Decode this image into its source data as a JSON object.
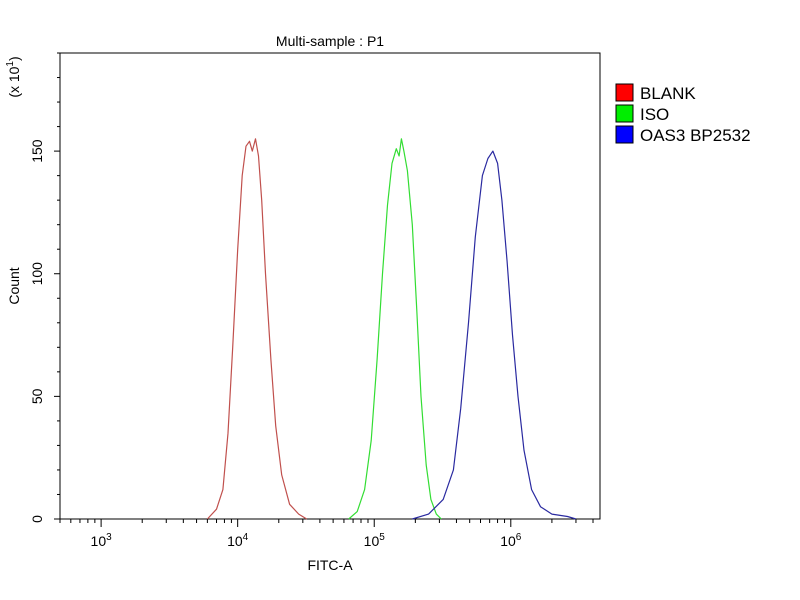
{
  "chart_data": {
    "type": "line",
    "title": "Multi-sample : P1",
    "xlabel": "FITC-A",
    "ylabel": "Count",
    "y_multiplier_label": "(x 10",
    "y_multiplier_exp": "1",
    "y_multiplier_close": ")",
    "x_scale": "log",
    "xlim": [
      500,
      4500000
    ],
    "ylim": [
      0,
      190
    ],
    "x_ticks": [
      {
        "value": 1000,
        "base": "10",
        "exp": "3"
      },
      {
        "value": 10000,
        "base": "10",
        "exp": "4"
      },
      {
        "value": 100000,
        "base": "10",
        "exp": "5"
      },
      {
        "value": 1000000,
        "base": "10",
        "exp": "6"
      }
    ],
    "y_ticks": [
      0,
      50,
      100,
      150
    ],
    "legend_position": "right",
    "series": [
      {
        "name": "BLANK",
        "color": "#c0504d",
        "legend_color": "#ff0000",
        "points": [
          [
            6000,
            0
          ],
          [
            7000,
            4
          ],
          [
            7800,
            12
          ],
          [
            8500,
            35
          ],
          [
            9200,
            70
          ],
          [
            10000,
            110
          ],
          [
            10800,
            140
          ],
          [
            11500,
            152
          ],
          [
            12200,
            154
          ],
          [
            12800,
            150
          ],
          [
            13500,
            155
          ],
          [
            14200,
            148
          ],
          [
            15000,
            130
          ],
          [
            16000,
            100
          ],
          [
            17500,
            65
          ],
          [
            19000,
            38
          ],
          [
            21000,
            18
          ],
          [
            24000,
            6
          ],
          [
            28000,
            2
          ],
          [
            32000,
            0
          ]
        ]
      },
      {
        "name": "ISO",
        "color": "#33dd33",
        "legend_color": "#00ee00",
        "points": [
          [
            65000,
            0
          ],
          [
            75000,
            3
          ],
          [
            85000,
            12
          ],
          [
            95000,
            32
          ],
          [
            105000,
            65
          ],
          [
            115000,
            100
          ],
          [
            125000,
            128
          ],
          [
            135000,
            145
          ],
          [
            145000,
            151
          ],
          [
            152000,
            148
          ],
          [
            158000,
            155
          ],
          [
            165000,
            150
          ],
          [
            175000,
            142
          ],
          [
            190000,
            120
          ],
          [
            205000,
            85
          ],
          [
            220000,
            50
          ],
          [
            240000,
            22
          ],
          [
            260000,
            8
          ],
          [
            285000,
            2
          ],
          [
            310000,
            0
          ]
        ]
      },
      {
        "name": "OAS3 BP2532",
        "color": "#2a2aa0",
        "legend_color": "#0000ff",
        "points": [
          [
            190000,
            0
          ],
          [
            250000,
            2
          ],
          [
            320000,
            8
          ],
          [
            380000,
            20
          ],
          [
            430000,
            45
          ],
          [
            490000,
            80
          ],
          [
            550000,
            115
          ],
          [
            620000,
            140
          ],
          [
            680000,
            147
          ],
          [
            740000,
            150
          ],
          [
            800000,
            145
          ],
          [
            860000,
            130
          ],
          [
            940000,
            105
          ],
          [
            1030000,
            75
          ],
          [
            1130000,
            50
          ],
          [
            1250000,
            28
          ],
          [
            1420000,
            12
          ],
          [
            1650000,
            5
          ],
          [
            2000000,
            2
          ],
          [
            2600000,
            1
          ],
          [
            3000000,
            0
          ]
        ]
      }
    ]
  }
}
